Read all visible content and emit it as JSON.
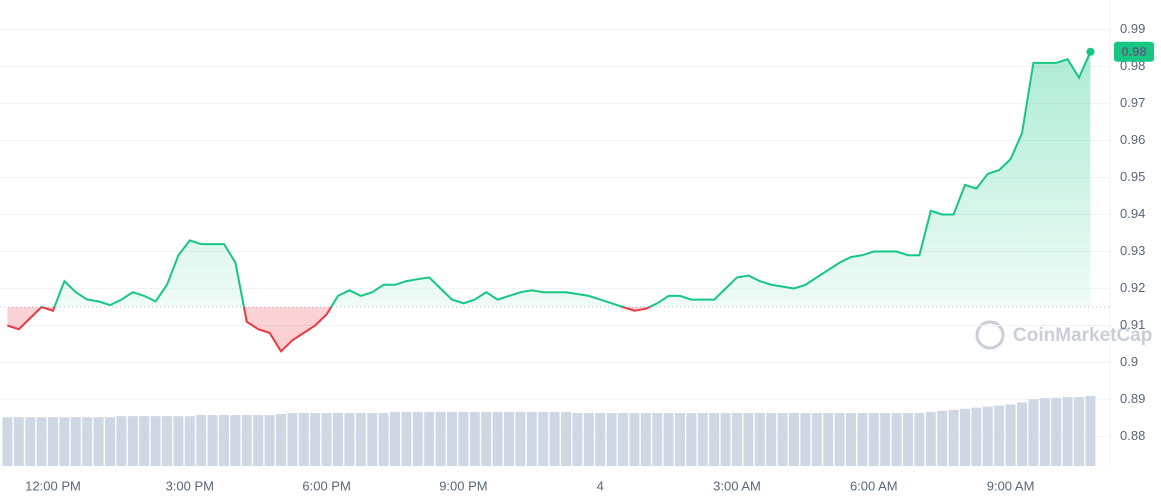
{
  "chart_data": {
    "type": "line",
    "watermark": "CoinMarketCap",
    "last_value_label": "0.98",
    "baseline": 0.915,
    "up_color": "#16c784",
    "down_color": "#ea3943",
    "volume_color": "#cfd6e4",
    "grid": true,
    "ylim": [
      0.872,
      0.998
    ],
    "yticks": [
      0.88,
      0.89,
      0.9,
      0.91,
      0.92,
      0.93,
      0.94,
      0.95,
      0.96,
      0.97,
      0.98,
      0.99
    ],
    "categories": [
      null,
      null,
      null,
      null,
      "12:00 PM",
      null,
      null,
      null,
      null,
      null,
      null,
      null,
      null,
      null,
      null,
      null,
      "3:00 PM",
      null,
      null,
      null,
      null,
      null,
      null,
      null,
      null,
      null,
      null,
      null,
      "6:00 PM",
      null,
      null,
      null,
      null,
      null,
      null,
      null,
      null,
      null,
      null,
      null,
      "9:00 PM",
      null,
      null,
      null,
      null,
      null,
      null,
      null,
      null,
      null,
      null,
      null,
      "4",
      null,
      null,
      null,
      null,
      null,
      null,
      null,
      null,
      null,
      null,
      null,
      "3:00 AM",
      null,
      null,
      null,
      null,
      null,
      null,
      null,
      null,
      null,
      null,
      null,
      "6:00 AM",
      null,
      null,
      null,
      null,
      null,
      null,
      null,
      null,
      null,
      null,
      null,
      "9:00 AM",
      null,
      null,
      null,
      null,
      null,
      null,
      null
    ],
    "values": [
      0.91,
      0.909,
      0.912,
      0.915,
      0.914,
      0.922,
      0.919,
      0.917,
      0.9165,
      0.9155,
      0.917,
      0.919,
      0.918,
      0.9165,
      0.921,
      0.929,
      0.933,
      0.932,
      0.932,
      0.932,
      0.927,
      0.911,
      0.909,
      0.908,
      0.903,
      0.906,
      0.908,
      0.91,
      0.913,
      0.918,
      0.9195,
      0.918,
      0.919,
      0.921,
      0.921,
      0.922,
      0.9225,
      0.923,
      0.92,
      0.917,
      0.916,
      0.917,
      0.919,
      0.917,
      0.918,
      0.919,
      0.9195,
      0.919,
      0.919,
      0.919,
      0.9185,
      0.918,
      0.917,
      0.916,
      0.915,
      0.914,
      0.9145,
      0.916,
      0.918,
      0.918,
      0.917,
      0.917,
      0.917,
      0.92,
      0.923,
      0.9235,
      0.922,
      0.921,
      0.9205,
      0.92,
      0.921,
      0.923,
      0.925,
      0.927,
      0.9285,
      0.929,
      0.93,
      0.93,
      0.93,
      0.929,
      0.929,
      0.941,
      0.94,
      0.94,
      0.948,
      0.947,
      0.951,
      0.952,
      0.955,
      0.962,
      0.981,
      0.981,
      0.981,
      0.982,
      0.977,
      0.984
    ],
    "volume": [
      46,
      46,
      46,
      46,
      46,
      46,
      46,
      46,
      46,
      46,
      47,
      47,
      47,
      47,
      47,
      47,
      47,
      48,
      48,
      48,
      48,
      48,
      48,
      48,
      49,
      50,
      50,
      50,
      50,
      50,
      50,
      50,
      50,
      50,
      51,
      51,
      51,
      51,
      51,
      51,
      51,
      51,
      51,
      51,
      51,
      51,
      51,
      51,
      51,
      51,
      50,
      50,
      50,
      50,
      50,
      50,
      50,
      50,
      50,
      50,
      50,
      50,
      50,
      50,
      50,
      50,
      50,
      50,
      50,
      50,
      50,
      50,
      50,
      50,
      50,
      50,
      50,
      50,
      50,
      50,
      50,
      51,
      52,
      53,
      54,
      55,
      56,
      57,
      58,
      60,
      63,
      64,
      64,
      65,
      65,
      66
    ]
  }
}
